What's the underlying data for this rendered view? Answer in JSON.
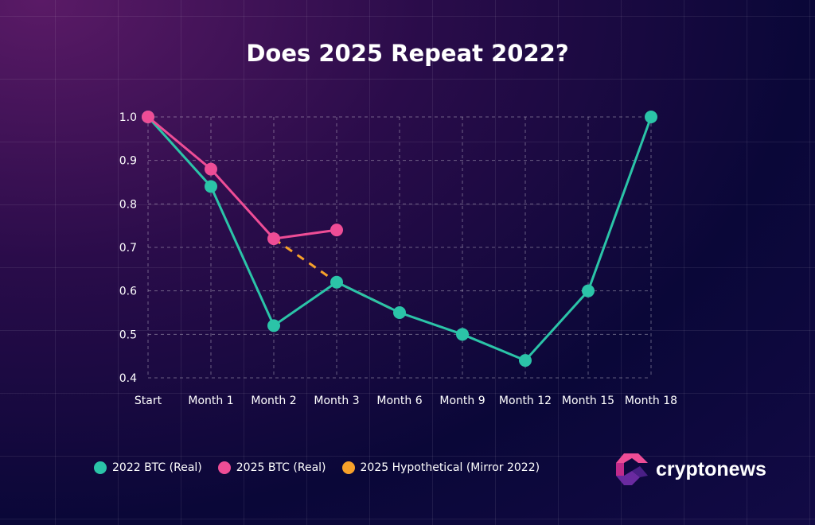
{
  "chart_data": {
    "type": "line",
    "title": "Does 2025 Repeat 2022?",
    "categories": [
      "Start",
      "Month 1",
      "Month 2",
      "Month 3",
      "Month 6",
      "Month 9",
      "Month 12",
      "Month 15",
      "Month 18"
    ],
    "ylim": [
      0.4,
      1.0
    ],
    "yticks": [
      "0.4",
      "0.5",
      "0.6",
      "0.7",
      "0.8",
      "0.9",
      "1.0"
    ],
    "grid": true,
    "legend_position": "bottom-left",
    "series": [
      {
        "name": "2022 BTC (Real)",
        "color": "#2bc4a8",
        "style": "solid",
        "values": [
          1.0,
          0.84,
          0.52,
          0.62,
          0.55,
          0.5,
          0.44,
          0.6,
          1.0
        ]
      },
      {
        "name": "2025 BTC (Real)",
        "color": "#ee4d96",
        "style": "solid",
        "values": [
          1.0,
          0.88,
          0.72,
          0.74,
          null,
          null,
          null,
          null,
          null
        ]
      },
      {
        "name": "2025 Hypothetical (Mirror 2022)",
        "color": "#f7a12a",
        "style": "dashed",
        "values": [
          null,
          null,
          0.72,
          0.62,
          0.55,
          null,
          null,
          null,
          null
        ]
      }
    ]
  },
  "brand": {
    "name": "cryptonews"
  }
}
